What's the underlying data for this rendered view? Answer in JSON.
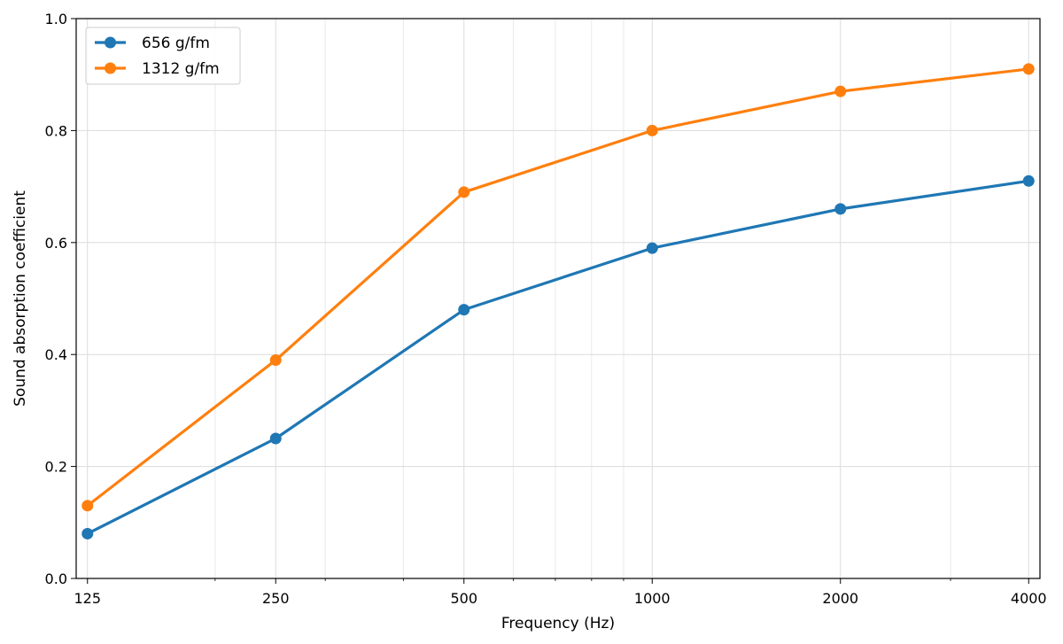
{
  "chart_data": {
    "type": "line",
    "x_scale": "log2",
    "xlabel": "Frequency (Hz)",
    "ylabel": "Sound absorption coefficient",
    "x": [
      125,
      250,
      500,
      1000,
      2000,
      4000
    ],
    "x_tick_labels": [
      "125",
      "250",
      "500",
      "1000",
      "2000",
      "4000"
    ],
    "ylim": [
      0.0,
      1.0
    ],
    "y_ticks": [
      0.0,
      0.2,
      0.4,
      0.6,
      0.8,
      1.0
    ],
    "y_tick_labels": [
      "0.0",
      "0.2",
      "0.4",
      "0.6",
      "0.8",
      "1.0"
    ],
    "grid": true,
    "legend_position": "top-left",
    "series": [
      {
        "name": "656 g/fm",
        "color": "#1f77b4",
        "values": [
          0.08,
          0.25,
          0.48,
          0.59,
          0.66,
          0.71
        ]
      },
      {
        "name": "1312 g/fm",
        "color": "#ff7f0e",
        "values": [
          0.13,
          0.39,
          0.69,
          0.8,
          0.87,
          0.91
        ]
      }
    ]
  }
}
